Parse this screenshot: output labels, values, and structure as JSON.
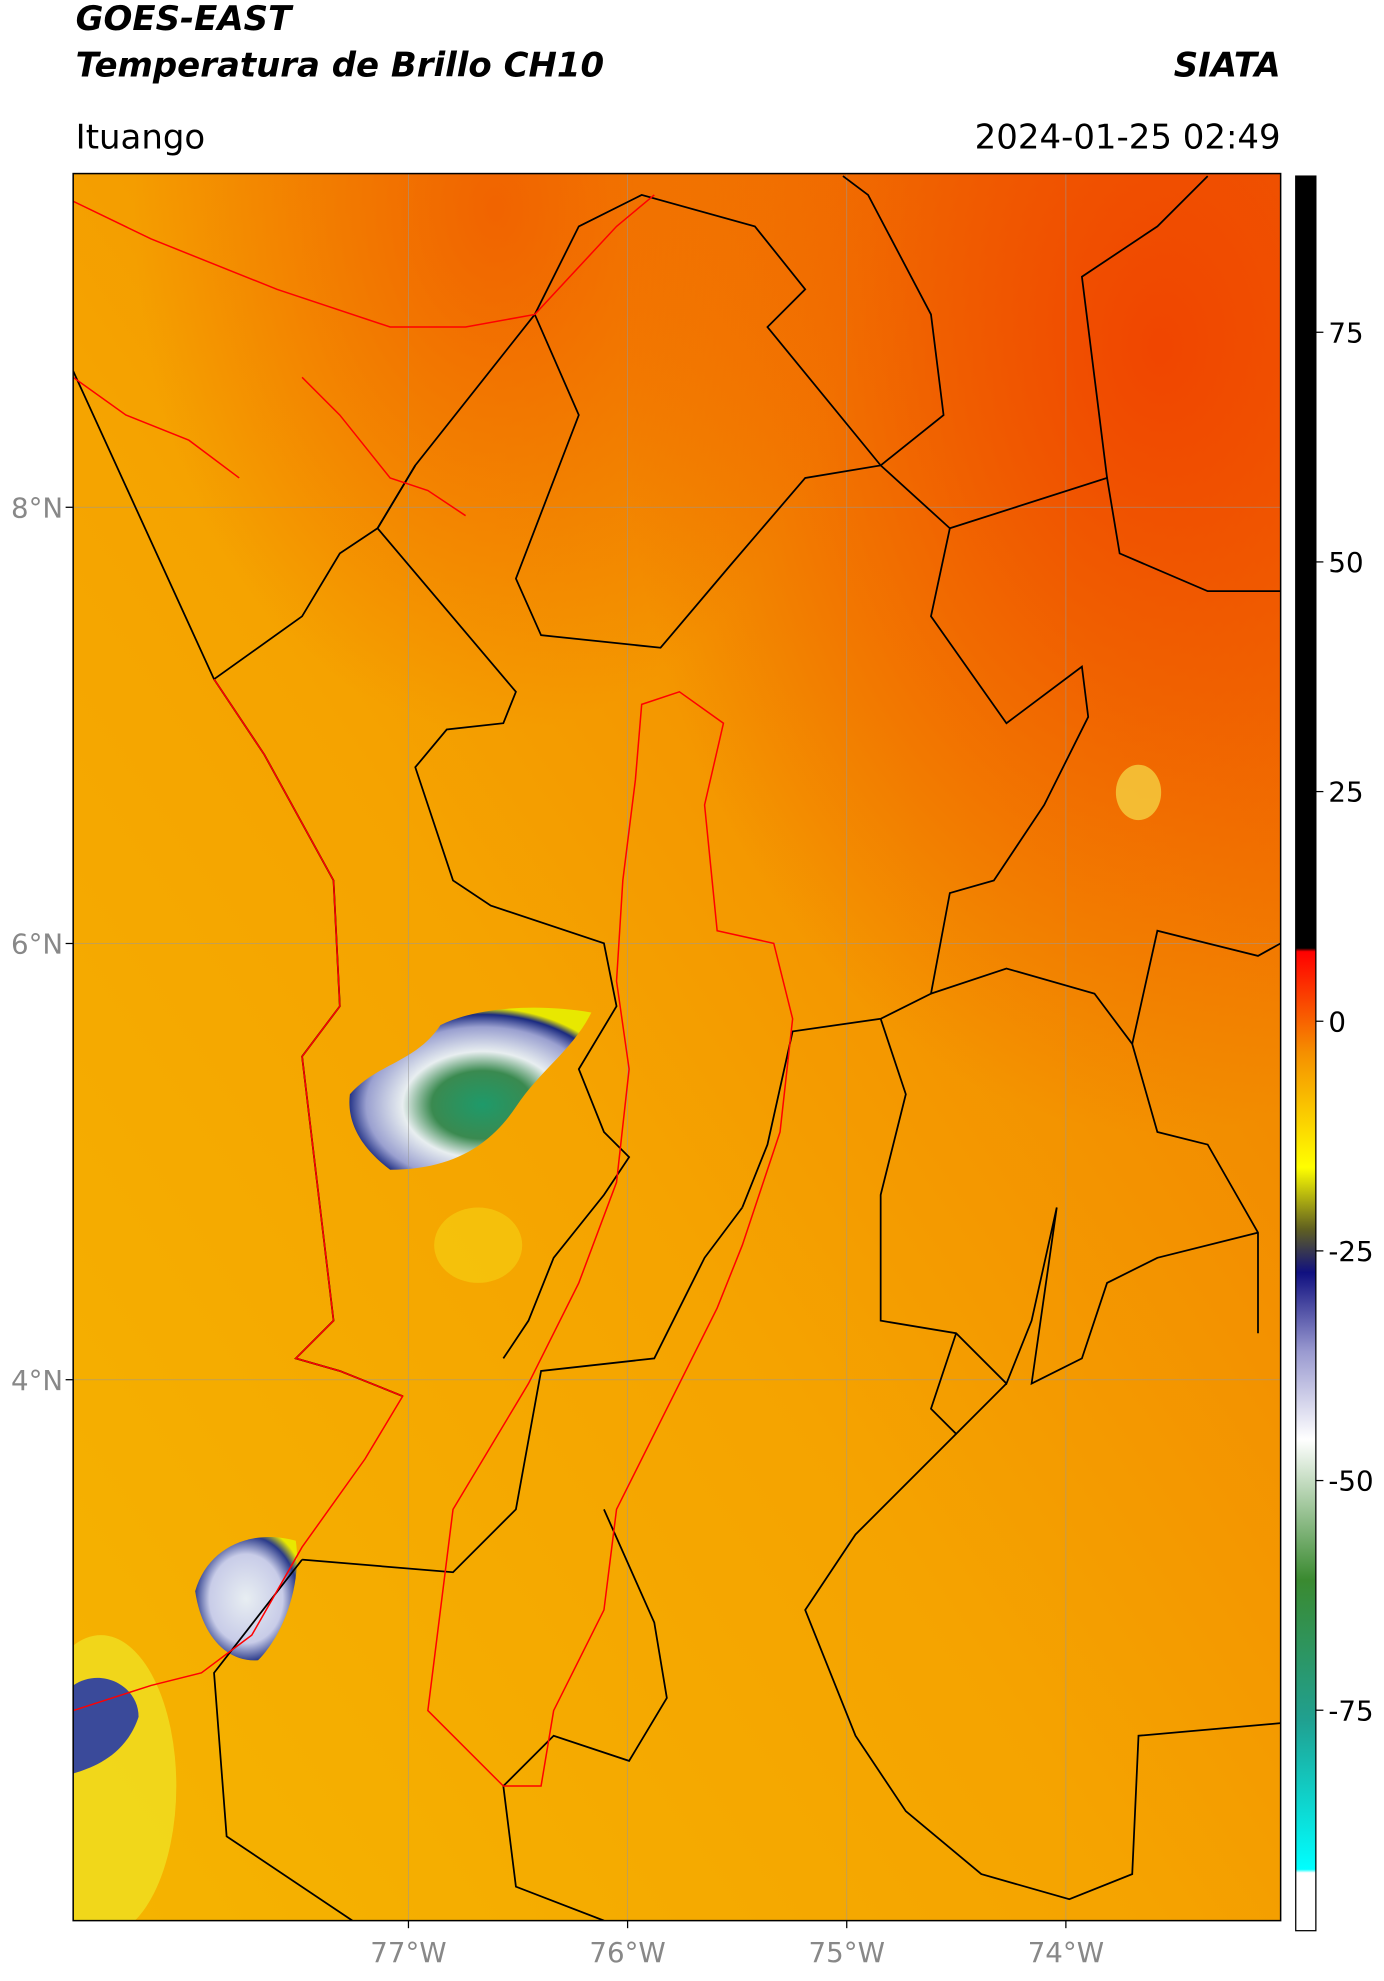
{
  "header": {
    "title": "GOES-EAST",
    "subtitle": "Temperatura de Brillo CH10",
    "source": "SIATA",
    "location": "Ituango",
    "datetime": "2024-01-25 02:49"
  },
  "chart_data": {
    "type": "map",
    "xlim": [
      -78.53,
      -73.02
    ],
    "ylim": [
      1.52,
      9.53
    ],
    "xticks": [
      {
        "value": -77,
        "label": "77°W"
      },
      {
        "value": -76,
        "label": "76°W"
      },
      {
        "value": -75,
        "label": "75°W"
      },
      {
        "value": -74,
        "label": "74°W"
      }
    ],
    "yticks": [
      {
        "value": 4,
        "label": "4°N"
      },
      {
        "value": 6,
        "label": "6°N"
      },
      {
        "value": 8,
        "label": "8°N"
      }
    ],
    "grid": true,
    "colorbar": {
      "lim": [
        -99,
        92
      ],
      "ticks": [
        -75,
        -50,
        -25,
        0,
        25,
        50,
        75
      ]
    }
  }
}
